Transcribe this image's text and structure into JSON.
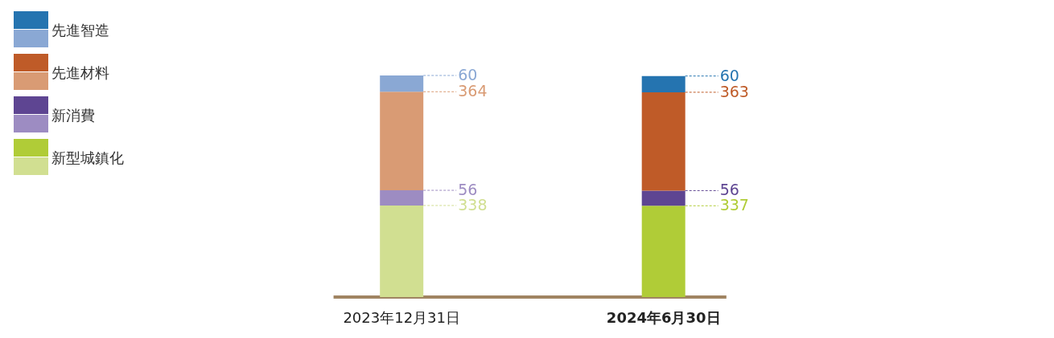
{
  "chart_data": {
    "type": "bar",
    "stacked": true,
    "data_labels": true,
    "legend": "top left",
    "categories": [
      "2023年12月31日",
      "2024年6月30日"
    ],
    "series": [
      {
        "name": "新型城鎮化",
        "colors": [
          "#d1df91",
          "#b0cc37"
        ],
        "values": [
          338,
          337
        ]
      },
      {
        "name": "新消費",
        "colors": [
          "#9d8cc2",
          "#5e4592"
        ],
        "values": [
          56,
          56
        ]
      },
      {
        "name": "先進材料",
        "colors": [
          "#d99b74",
          "#bf5b28"
        ],
        "values": [
          364,
          363
        ]
      },
      {
        "name": "先進智造",
        "colors": [
          "#8aa8d4",
          "#2574b0"
        ],
        "values": [
          60,
          60
        ]
      }
    ]
  }
}
